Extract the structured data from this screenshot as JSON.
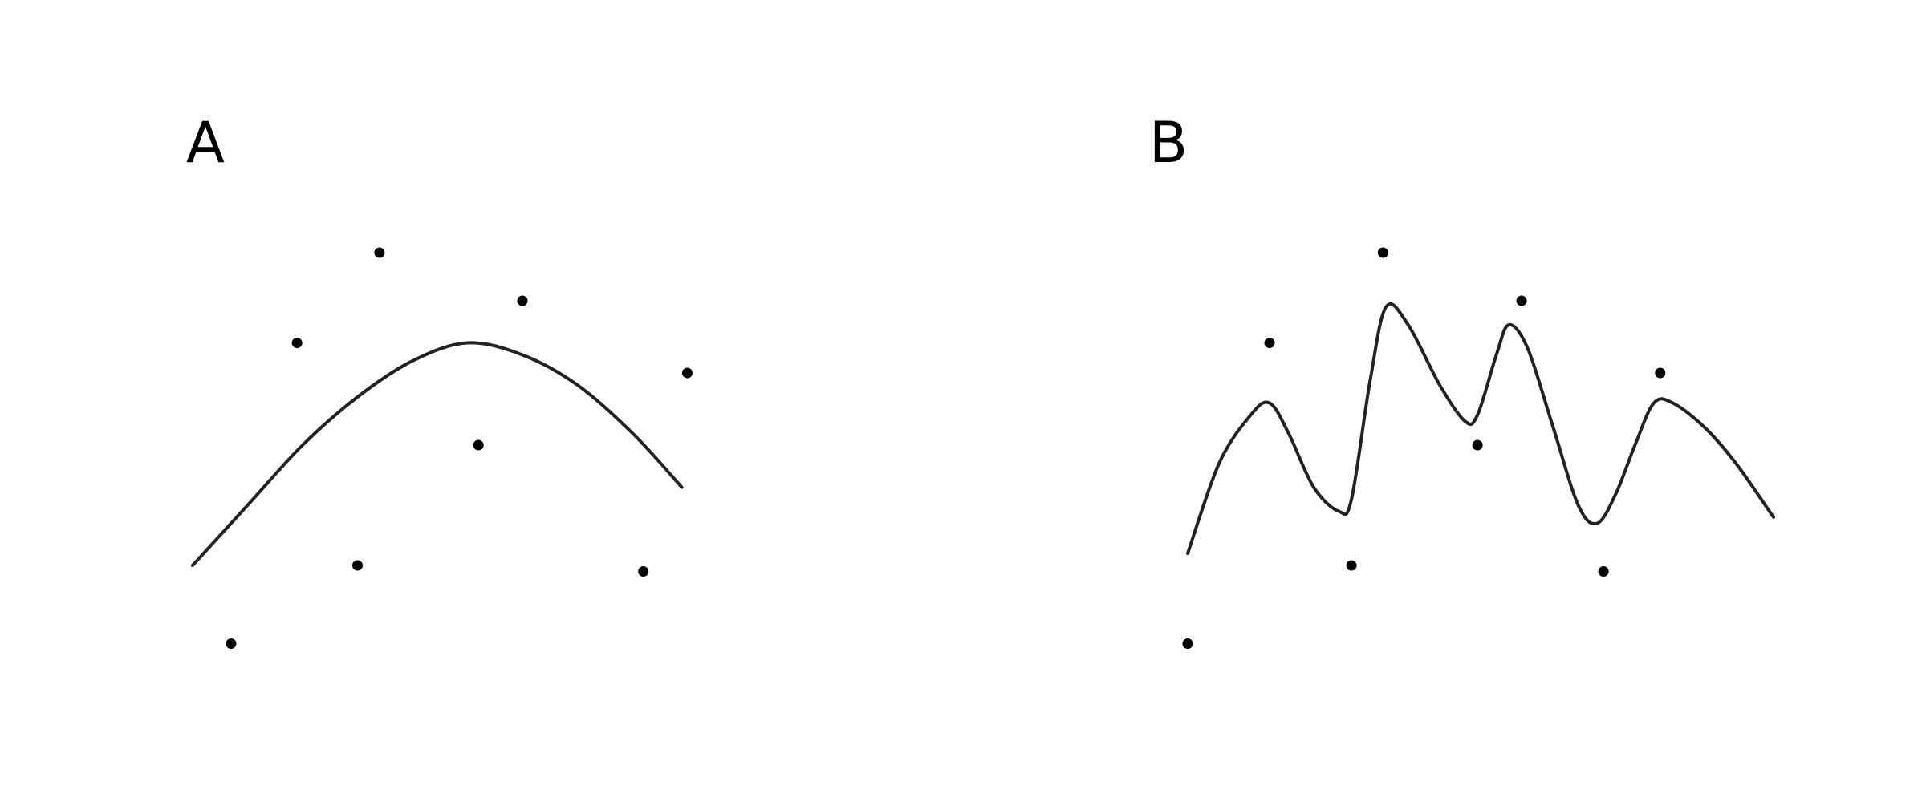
{
  "chart_data": [
    {
      "type": "scatter",
      "panel_label": "A",
      "title": "",
      "xlabel": "",
      "ylabel": "",
      "axes_visible": false,
      "grid": false,
      "xlim": [
        0,
        10
      ],
      "ylim": [
        0,
        10
      ],
      "series": [
        {
          "kind": "points",
          "points": [
            [
              0.7,
              1.3
            ],
            [
              1.9,
              6.3
            ],
            [
              3.4,
              7.8
            ],
            [
              3.0,
              2.6
            ],
            [
              5.2,
              4.6
            ],
            [
              6.0,
              7.0
            ],
            [
              8.2,
              2.5
            ],
            [
              9.0,
              5.8
            ]
          ]
        },
        {
          "kind": "fitted-curve",
          "points": [
            [
              0,
              2.6
            ],
            [
              1.0,
              3.6
            ],
            [
              2.0,
              4.6
            ],
            [
              3.0,
              5.4
            ],
            [
              4.0,
              6.0
            ],
            [
              5.0,
              6.3
            ],
            [
              6.0,
              6.1
            ],
            [
              7.0,
              5.6
            ],
            [
              8.0,
              4.8
            ],
            [
              8.9,
              3.9
            ]
          ]
        }
      ],
      "colors": {
        "points": "#000000",
        "curve": "#222222"
      }
    },
    {
      "type": "scatter",
      "panel_label": "B",
      "title": "",
      "xlabel": "",
      "ylabel": "",
      "axes_visible": false,
      "grid": false,
      "xlim": [
        0,
        10
      ],
      "ylim": [
        0,
        10
      ],
      "series": [
        {
          "kind": "points",
          "points": [
            [
              0.0,
              1.3
            ],
            [
              1.3,
              6.3
            ],
            [
              2.6,
              2.6
            ],
            [
              3.1,
              7.8
            ],
            [
              4.6,
              4.6
            ],
            [
              5.3,
              7.0
            ],
            [
              6.6,
              2.5
            ],
            [
              7.5,
              5.8
            ]
          ]
        },
        {
          "kind": "overfitted-curve",
          "points": [
            [
              0.0,
              2.8
            ],
            [
              0.5,
              4.3
            ],
            [
              1.0,
              5.1
            ],
            [
              1.3,
              5.3
            ],
            [
              1.6,
              4.8
            ],
            [
              2.0,
              3.9
            ],
            [
              2.4,
              3.5
            ],
            [
              2.6,
              3.7
            ],
            [
              2.9,
              5.7
            ],
            [
              3.15,
              6.9
            ],
            [
              3.5,
              6.6
            ],
            [
              4.0,
              5.6
            ],
            [
              4.4,
              5.0
            ],
            [
              4.6,
              5.1
            ],
            [
              4.9,
              6.1
            ],
            [
              5.1,
              6.6
            ],
            [
              5.4,
              6.2
            ],
            [
              5.8,
              4.9
            ],
            [
              6.2,
              3.6
            ],
            [
              6.5,
              3.3
            ],
            [
              6.8,
              3.8
            ],
            [
              7.1,
              4.6
            ],
            [
              7.4,
              5.3
            ],
            [
              7.7,
              5.3
            ],
            [
              8.2,
              4.9
            ],
            [
              8.7,
              4.3
            ],
            [
              9.3,
              3.4
            ]
          ]
        }
      ],
      "colors": {
        "points": "#000000",
        "curve": "#222222"
      }
    }
  ]
}
